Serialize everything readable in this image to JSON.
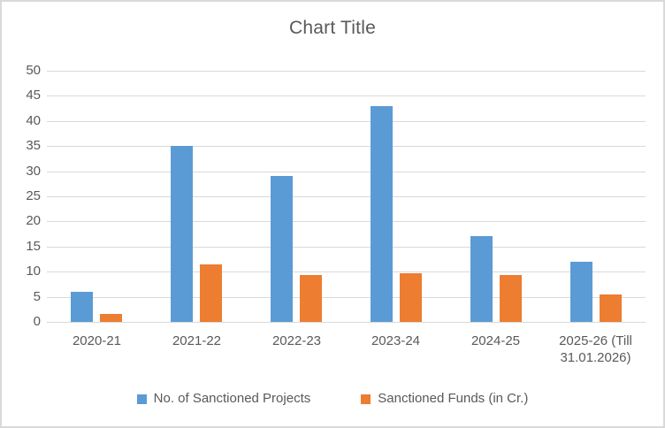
{
  "chart_data": {
    "type": "bar",
    "title": "Chart Title",
    "categories": [
      "2020-21",
      "2021-22",
      "2022-23",
      "2023-24",
      "2024-25",
      "2025-26 (Till 31.01.2026)"
    ],
    "series": [
      {
        "name": "No. of Sanctioned Projects",
        "color": "#5B9BD5",
        "values": [
          6,
          35,
          29,
          43,
          17,
          12
        ]
      },
      {
        "name": "Sanctioned Funds (in Cr.)",
        "color": "#ED7D31",
        "values": [
          1.5,
          11.5,
          9.4,
          9.6,
          9.3,
          5.4
        ]
      }
    ],
    "xlabel": "",
    "ylabel": "",
    "ylim": [
      0,
      50
    ],
    "yticks": [
      0,
      5,
      10,
      15,
      20,
      25,
      30,
      35,
      40,
      45,
      50
    ],
    "grid": true,
    "legend_position": "bottom"
  },
  "colors": {
    "background": "#FFFFFF",
    "border": "#D9D9D9",
    "gridline": "#D9D9D9",
    "text": "#595959",
    "series_blue": "#5B9BD5",
    "series_orange": "#ED7D31"
  }
}
